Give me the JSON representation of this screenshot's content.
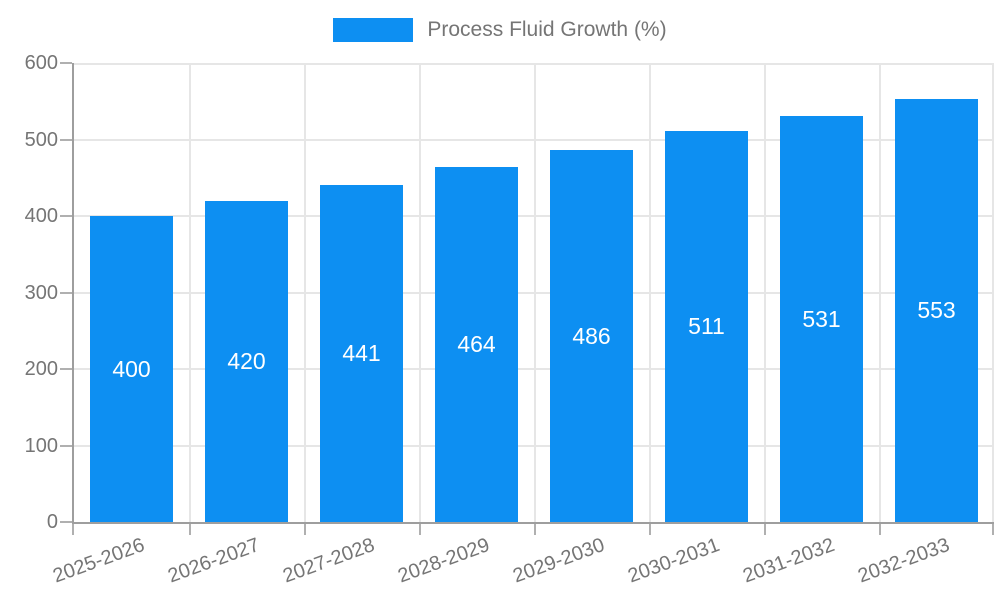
{
  "chart_data": {
    "type": "bar",
    "title": "Process Fluid Growth (%)",
    "legend": {
      "position": "top",
      "entries": [
        "Process Fluid Growth (%)"
      ]
    },
    "categories": [
      "2025-2026",
      "2026-2027",
      "2027-2028",
      "2028-2029",
      "2029-2030",
      "2030-2031",
      "2031-2032",
      "2032-2033"
    ],
    "series": [
      {
        "name": "Process Fluid Growth (%)",
        "values": [
          400,
          420,
          441,
          464,
          486,
          511,
          531,
          553
        ]
      }
    ],
    "value_labels": "inside-center",
    "xlabel": "",
    "ylabel": "",
    "ylim": [
      0,
      600
    ],
    "yticks": [
      0,
      100,
      200,
      300,
      400,
      500,
      600
    ],
    "grid": true,
    "colors": {
      "bar": "#0d8ff2",
      "value_label": "#ffffff",
      "axis_text": "#757575",
      "grid_line": "#e6e6e6",
      "axis_line": "#9e9e9e",
      "tick": "#b0b0b0",
      "background": "#ffffff"
    }
  }
}
